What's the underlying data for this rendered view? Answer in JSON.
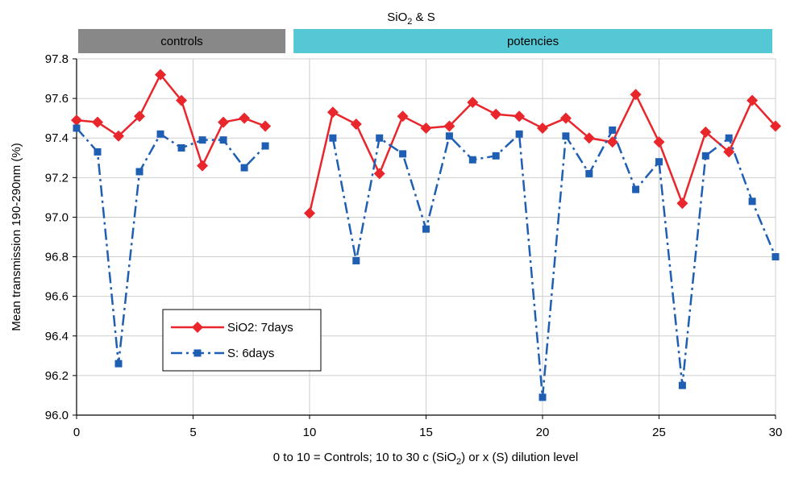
{
  "chart_data": {
    "type": "line",
    "title_main": "SiO",
    "title_sub": "2",
    "title_tail": " & S",
    "bands": [
      {
        "label": "controls",
        "color": "#888888",
        "x_start": 0,
        "x_end": 9
      },
      {
        "label": "potencies",
        "color": "#55c8d6",
        "x_start": 9,
        "x_end": 30
      }
    ],
    "ylabel": "Mean transmission 190-290nm (%)",
    "xlabel_parts": [
      "0 to 10 = Controls; 10 to 30 c (SiO",
      "2",
      ") or x (S) dilution level"
    ],
    "xlim": [
      0,
      30
    ],
    "ylim": [
      96.0,
      97.8
    ],
    "x_ticks": [
      "0",
      "5",
      "10",
      "15",
      "20",
      "25",
      "30"
    ],
    "y_ticks": [
      "96.0",
      "96.2",
      "96.4",
      "96.6",
      "96.8",
      "97.0",
      "97.2",
      "97.4",
      "97.6",
      "97.8"
    ],
    "grid": true,
    "legend_position": "lower-left",
    "series": [
      {
        "name": "SiO2: 7days",
        "color": "#e8262b",
        "marker": "diamond",
        "style": "solid",
        "segments": [
          [
            [
              0,
              97.49
            ],
            [
              0.9,
              97.48
            ],
            [
              1.8,
              97.41
            ],
            [
              2.7,
              97.51
            ],
            [
              3.6,
              97.72
            ],
            [
              4.5,
              97.59
            ],
            [
              5.4,
              97.26
            ],
            [
              6.3,
              97.48
            ],
            [
              7.2,
              97.5
            ],
            [
              8.1,
              97.46
            ]
          ],
          [
            [
              10,
              97.02
            ],
            [
              11,
              97.53
            ],
            [
              12,
              97.47
            ],
            [
              13,
              97.22
            ],
            [
              14,
              97.51
            ],
            [
              15,
              97.45
            ],
            [
              16,
              97.46
            ],
            [
              17,
              97.58
            ],
            [
              18,
              97.52
            ],
            [
              19,
              97.51
            ],
            [
              20,
              97.45
            ],
            [
              21,
              97.5
            ],
            [
              22,
              97.4
            ],
            [
              23,
              97.38
            ],
            [
              24,
              97.62
            ],
            [
              25,
              97.38
            ],
            [
              26,
              97.07
            ],
            [
              27,
              97.43
            ],
            [
              28,
              97.33
            ],
            [
              29,
              97.59
            ],
            [
              30,
              97.46
            ]
          ]
        ]
      },
      {
        "name": "S: 6days",
        "color": "#1f5fb3",
        "marker": "square",
        "style": "dashdot",
        "segments": [
          [
            [
              0,
              97.45
            ],
            [
              0.9,
              97.33
            ],
            [
              1.8,
              96.26
            ],
            [
              2.7,
              97.23
            ],
            [
              3.6,
              97.42
            ],
            [
              4.5,
              97.35
            ],
            [
              5.4,
              97.39
            ],
            [
              6.3,
              97.39
            ],
            [
              7.2,
              97.25
            ],
            [
              8.1,
              97.36
            ]
          ],
          [
            [
              11,
              97.4
            ],
            [
              12,
              96.78
            ],
            [
              13,
              97.4
            ],
            [
              14,
              97.32
            ],
            [
              15,
              96.94
            ],
            [
              16,
              97.41
            ],
            [
              17,
              97.29
            ],
            [
              18,
              97.31
            ],
            [
              19,
              97.42
            ],
            [
              20,
              96.09
            ],
            [
              21,
              97.41
            ],
            [
              22,
              97.22
            ],
            [
              23,
              97.44
            ],
            [
              24,
              97.14
            ],
            [
              25,
              97.28
            ],
            [
              26,
              96.15
            ],
            [
              27,
              97.31
            ],
            [
              28,
              97.4
            ],
            [
              29,
              97.08
            ],
            [
              30,
              96.8
            ]
          ]
        ]
      }
    ]
  }
}
